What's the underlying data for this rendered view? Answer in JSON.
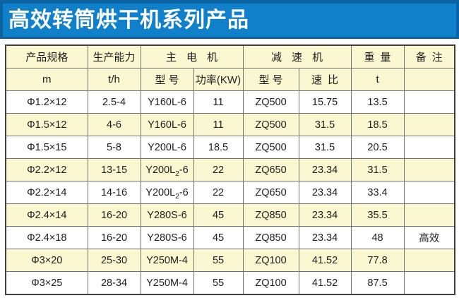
{
  "banner": {
    "title": "高效转筒烘干机系列产品",
    "bg_color": "#0f80c9",
    "border_color": "#0b63a2",
    "text_color": "#ffffff"
  },
  "table": {
    "header_groups": {
      "spec": "产品规格",
      "capacity": "生产能力",
      "main_motor": "主电机",
      "reducer": "减速机",
      "weight": "重量",
      "remark": "备注"
    },
    "header_units": {
      "spec": "m",
      "capacity": "t/h",
      "motor_model": "型号",
      "motor_power": "功率(KW)",
      "reducer_model": "型号",
      "speed_ratio": "速比",
      "weight": "t",
      "remark": ""
    },
    "rows": [
      [
        "Φ1.2×12",
        "2.5-4",
        "Y160L-6",
        "11",
        "ZQ500",
        "15.75",
        "13.5",
        ""
      ],
      [
        "Φ1.5×12",
        "4-6",
        "Y160L-6",
        "11",
        "ZQ500",
        "31.5",
        "18.5",
        ""
      ],
      [
        "Φ1.5×15",
        "5-8",
        "Y200L-6",
        "18.5",
        "ZQ500",
        "31.5",
        "20.5",
        ""
      ],
      [
        "Φ2.2×12",
        "13-15",
        "Y200L₂-6",
        "22",
        "ZQ650",
        "23.34",
        "31.5",
        ""
      ],
      [
        "Φ2.2×14",
        "14-16",
        "Y200L₂-6",
        "22",
        "ZQ650",
        "23.34",
        "33.4",
        ""
      ],
      [
        "Φ2.4×14",
        "16-20",
        "Y280S-6",
        "45",
        "ZQ850",
        "23.34",
        "35.5",
        ""
      ],
      [
        "Φ2.4×18",
        "16-20",
        "Y280S-6",
        "45",
        "ZQ850",
        "23.34",
        "48",
        "高效"
      ],
      [
        "Φ3×20",
        "25-30",
        "Y250M-4",
        "55",
        "ZQ100",
        "41.52",
        "77.8",
        ""
      ],
      [
        "Φ3×25",
        "28-34",
        "Y250M-4",
        "55",
        "ZQ100",
        "41.52",
        "87.5",
        ""
      ]
    ],
    "colors": {
      "header_bg": "#fbf7d0",
      "alt_row_bg": "#fbf7d0",
      "row_bg": "#ffffff",
      "border": "#6f6f6f",
      "outer_border": "#3e3e3e"
    }
  }
}
